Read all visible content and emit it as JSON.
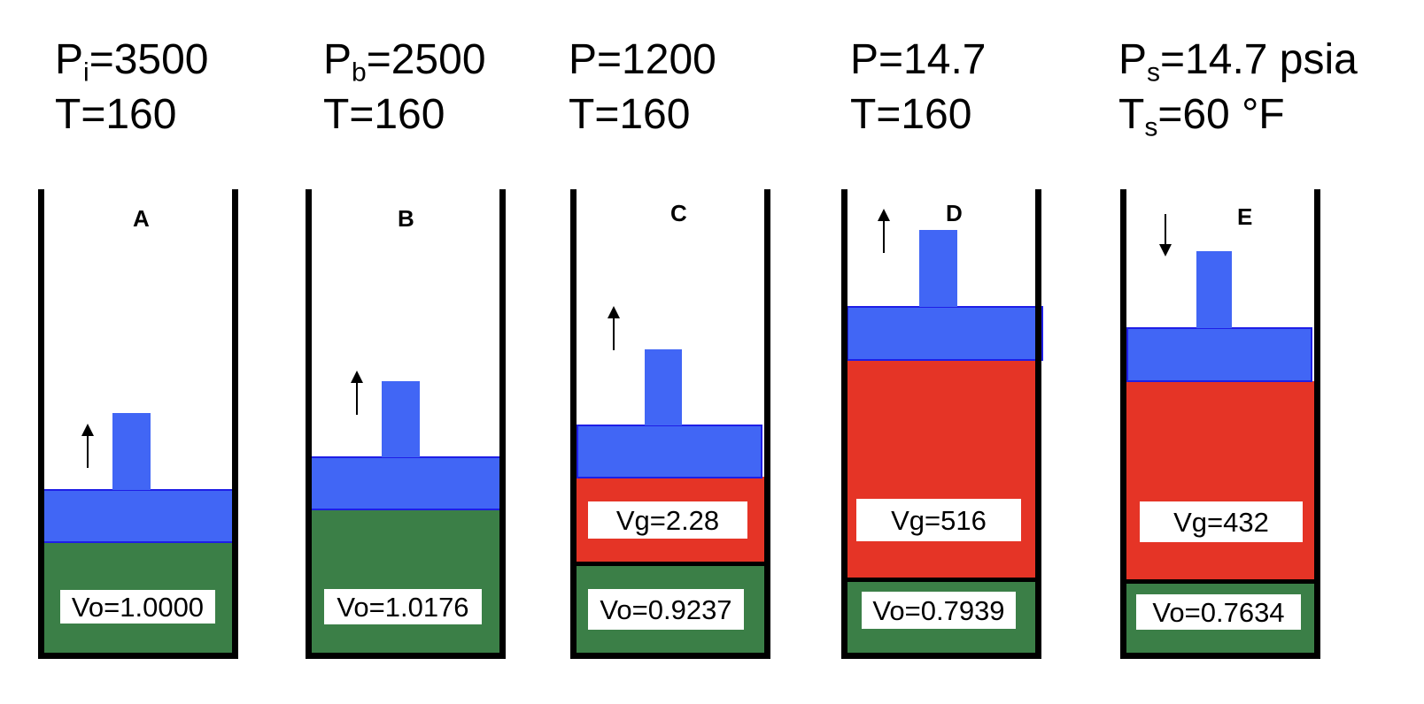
{
  "headers": [
    {
      "line1": {
        "sym": "P",
        "sub": "i",
        "rest": "=3500"
      },
      "line2": {
        "sym": "T",
        "sub": "",
        "rest": "=160"
      }
    },
    {
      "line1": {
        "sym": "P",
        "sub": "b",
        "rest": "=2500"
      },
      "line2": {
        "sym": "T",
        "sub": "",
        "rest": "=160"
      }
    },
    {
      "line1": {
        "sym": "P",
        "sub": "",
        "rest": "=1200"
      },
      "line2": {
        "sym": "T",
        "sub": "",
        "rest": "=160"
      }
    },
    {
      "line1": {
        "sym": "P",
        "sub": "",
        "rest": "=14.7"
      },
      "line2": {
        "sym": "T",
        "sub": "",
        "rest": "=160"
      }
    },
    {
      "line1": {
        "sym": "P",
        "sub": "s",
        "rest": "=14.7 psia"
      },
      "line2": {
        "sym": "T",
        "sub": "s",
        "rest": "=60 °F"
      }
    }
  ],
  "cylinders": [
    {
      "label": "A",
      "vo": "Vo=1.0000",
      "vg": null,
      "arrow": "up"
    },
    {
      "label": "B",
      "vo": "Vo=1.0176",
      "vg": null,
      "arrow": "up"
    },
    {
      "label": "C",
      "vo": "Vo=0.9237",
      "vg": "Vg=2.28",
      "arrow": "up"
    },
    {
      "label": "D",
      "vo": "Vo=0.7939",
      "vg": "Vg=516",
      "arrow": "up"
    },
    {
      "label": "E",
      "vo": "Vo=0.7634",
      "vg": "Vg=432",
      "arrow": "down"
    }
  ],
  "colors": {
    "oil": "#3b7f47",
    "gas": "#e53426",
    "piston": "#4166f5"
  }
}
